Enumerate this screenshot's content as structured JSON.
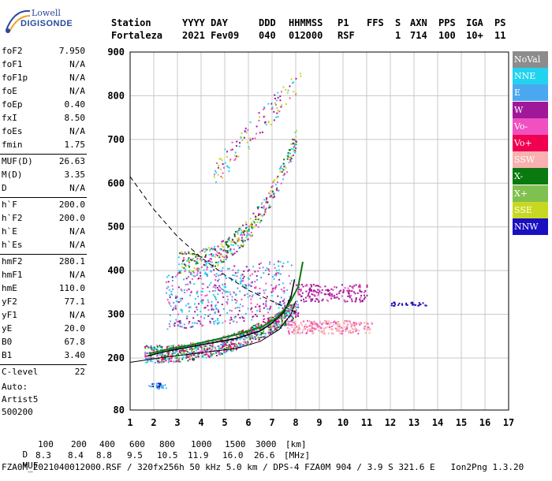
{
  "logo": {
    "line1": "Lowell",
    "line2": "DIGISONDE"
  },
  "header": {
    "labels": [
      "Station",
      "YYYY DAY",
      "DDD",
      "HHMMSS",
      "P1",
      "FFS",
      "S",
      "AXN",
      "PPS",
      "IGA",
      "PS"
    ],
    "values": [
      "Fortaleza",
      "2021 Fev09",
      "040",
      "012000",
      "RSF",
      "1",
      "714",
      "100",
      "10+",
      "11"
    ]
  },
  "params": [
    {
      "label": "foF2",
      "value": "7.950"
    },
    {
      "label": "foF1",
      "value": "N/A"
    },
    {
      "label": "foF1p",
      "value": "N/A"
    },
    {
      "label": "foE",
      "value": "N/A"
    },
    {
      "label": "foEp",
      "value": "0.40"
    },
    {
      "label": "fxI",
      "value": "8.50"
    },
    {
      "label": "foEs",
      "value": "N/A"
    },
    {
      "label": "fmin",
      "value": "1.75"
    },
    {
      "label": "MUF(D)",
      "value": "26.63"
    },
    {
      "label": "M(D)",
      "value": "3.35"
    },
    {
      "label": "D",
      "value": "N/A"
    },
    {
      "label": "h`F",
      "value": "200.0"
    },
    {
      "label": "h`F2",
      "value": "200.0"
    },
    {
      "label": "h`E",
      "value": "N/A"
    },
    {
      "label": "h`Es",
      "value": "N/A"
    },
    {
      "label": "hmF2",
      "value": "280.1"
    },
    {
      "label": "hmF1",
      "value": "N/A"
    },
    {
      "label": "hmE",
      "value": "110.0"
    },
    {
      "label": "yF2",
      "value": "77.1"
    },
    {
      "label": "yF1",
      "value": "N/A"
    },
    {
      "label": "yE",
      "value": "20.0"
    },
    {
      "label": "B0",
      "value": "67.8"
    },
    {
      "label": "B1",
      "value": "3.40"
    },
    {
      "label": "C-level",
      "value": "22"
    }
  ],
  "misc": {
    "auto": "Auto:",
    "artist": "Artist5",
    "code": "500200"
  },
  "legend": [
    {
      "label": "NoVal",
      "color": "#8c8c8c"
    },
    {
      "label": "NNE",
      "color": "#22d3f0"
    },
    {
      "label": "E",
      "color": "#4aa8f0"
    },
    {
      "label": "W",
      "color": "#a0189a"
    },
    {
      "label": "Vo-",
      "color": "#f050c0"
    },
    {
      "label": "Vo+",
      "color": "#f00050"
    },
    {
      "label": "SSW",
      "color": "#f8b0b0"
    },
    {
      "label": "X-",
      "color": "#0a7a10"
    },
    {
      "label": "X+",
      "color": "#80c050"
    },
    {
      "label": "SSE",
      "color": "#c8d820"
    },
    {
      "label": "NNW",
      "color": "#1a10c0"
    }
  ],
  "footer": {
    "d_row_label": "D",
    "d_values": [
      "100",
      "200",
      "400",
      "600",
      "800",
      "1000",
      "1500",
      "3000",
      "[km]"
    ],
    "muf_row_label": "MUF",
    "muf_values": [
      "8.3",
      "8.4",
      "8.8",
      "9.5",
      "10.5",
      "11.9",
      "16.0",
      "26.6",
      "[MHz]"
    ],
    "file_line": "FZA0M_2021040012000.RSF / 320fx256h 50 kHz 5.0 km / DPS-4 FZA0M 904 / 3.9 S 321.6 E   Ion2Png 1.3.20"
  },
  "chart_data": {
    "type": "scatter",
    "xlim": [
      1,
      17
    ],
    "ylim": [
      80,
      900
    ],
    "x_ticks": [
      1,
      2,
      3,
      4,
      5,
      6,
      7,
      8,
      9,
      10,
      11,
      12,
      13,
      14,
      15,
      16,
      17
    ],
    "y_ticks": [
      80,
      200,
      300,
      400,
      500,
      600,
      700,
      800,
      900
    ],
    "grid": true,
    "series": [
      {
        "name": "O-trace profile",
        "x": [
          1.75,
          2.5,
          3.5,
          4.5,
          5.5,
          6.5,
          7.0,
          7.5,
          7.8,
          7.95
        ],
        "y": [
          205,
          215,
          225,
          235,
          245,
          262,
          280,
          305,
          340,
          380
        ]
      },
      {
        "name": "X-trace",
        "x": [
          1.8,
          2.6,
          3.6,
          4.6,
          5.6,
          6.6,
          7.2,
          7.7,
          8.1,
          8.3
        ],
        "y": [
          210,
          220,
          230,
          242,
          255,
          272,
          292,
          322,
          362,
          420
        ]
      },
      {
        "name": "Profile model",
        "x": [
          1.0,
          2.5,
          4.0,
          5.5,
          6.5,
          7.3,
          7.8,
          8.0
        ],
        "y": [
          190,
          202,
          212,
          222,
          238,
          265,
          300,
          330
        ]
      },
      {
        "name": "MUF curve",
        "x": [
          1.0,
          2.0,
          3.0,
          4.0,
          5.0,
          6.0,
          7.0,
          7.6,
          8.0
        ],
        "y": [
          615,
          540,
          478,
          430,
          390,
          355,
          330,
          315,
          305
        ]
      },
      {
        "name": "E spread",
        "x": [
          1.8,
          2.0,
          2.3,
          2.5
        ],
        "y": [
          135,
          138,
          140,
          136
        ]
      }
    ]
  }
}
